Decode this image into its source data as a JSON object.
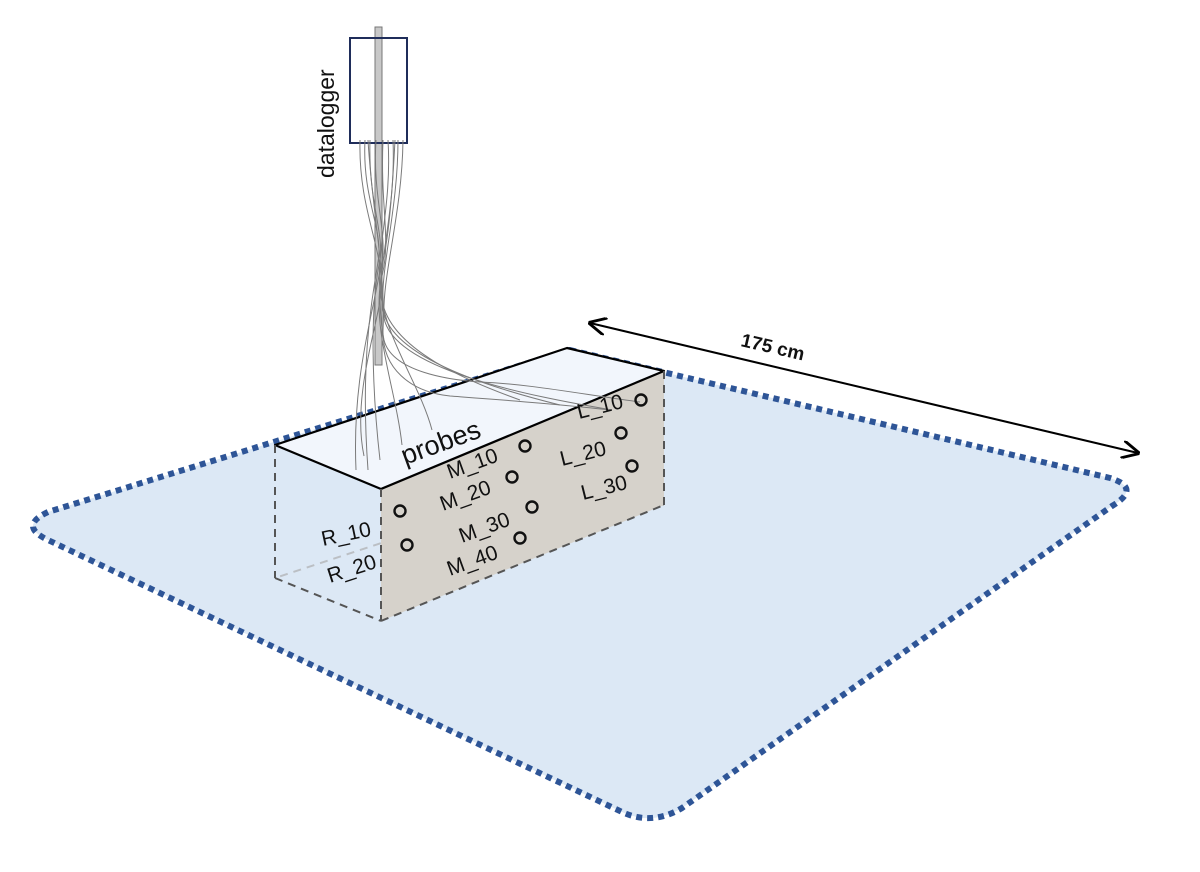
{
  "diagram": {
    "datalogger_label": "datalogger",
    "probes_label": "probes",
    "dimension_label": "175 cm",
    "probes": [
      {
        "id": "L_10",
        "label": "L_10"
      },
      {
        "id": "L_20",
        "label": "L_20"
      },
      {
        "id": "L_30",
        "label": "L_30"
      },
      {
        "id": "M_10",
        "label": "M_10"
      },
      {
        "id": "M_20",
        "label": "M_20"
      },
      {
        "id": "M_30",
        "label": "M_30"
      },
      {
        "id": "M_40",
        "label": "M_40"
      },
      {
        "id": "R_10",
        "label": "R_10"
      },
      {
        "id": "R_20",
        "label": "R_20"
      }
    ]
  },
  "colors": {
    "plot_fill": "#dce8f5",
    "plot_border": "#2e5597",
    "box_top": "#f2f6fc",
    "box_front": "#d6d2cb",
    "datalogger_border": "#1f2d5a",
    "pole": "#c8c8c8"
  }
}
